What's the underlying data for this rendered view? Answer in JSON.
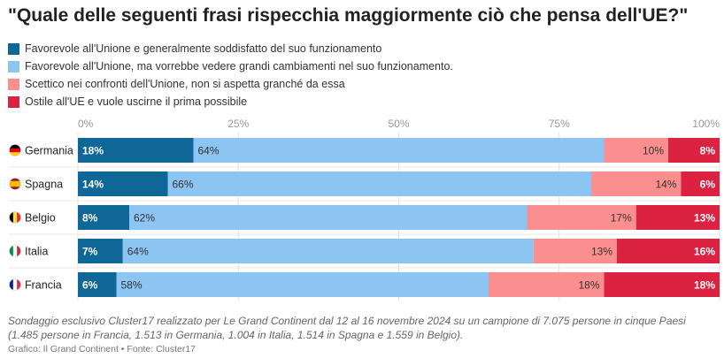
{
  "title": "\"Quale delle seguenti frasi rispecchia maggiormente ciò che pensa dell'UE?\"",
  "legend": [
    {
      "label": "Favorevole all'Unione e generalmente soddisfatto del suo funzionamento",
      "color": "#0e6797"
    },
    {
      "label": "Favorevole all'Unione, ma vorrebbe vedere grandi cambiamenti nel suo funzionamento.",
      "color": "#8cc4f2"
    },
    {
      "label": "Scettico nei confronti dell'Unione, non si aspetta granché da essa",
      "color": "#fb8e8e"
    },
    {
      "label": "Ostile all'UE e vuole uscirne il prima possibile",
      "color": "#dc2241"
    }
  ],
  "note": "Sondaggio esclusivo Cluster17 realizzato per Le Grand Continent dal 12 al 16 novembre 2024 su un campione di 7.075 persone in cinque Paesi (1.485 persone in Francia, 1.513 in Germania, 1.004 in Italia, 1.514 in Spagna e 1.559 in Belgio).",
  "source": "Grafico: Il Grand Continent • Fonte: Cluster17",
  "chart_data": {
    "type": "bar",
    "orientation": "horizontal",
    "stacked": true,
    "xlim": [
      0,
      100
    ],
    "xticks": [
      "0%",
      "25%",
      "50%",
      "75%",
      "100%"
    ],
    "categories": [
      "Germania",
      "Spagna",
      "Belgio",
      "Italia",
      "Francia"
    ],
    "series": [
      {
        "name": "Favorevole all'Unione e generalmente soddisfatto del suo funzionamento",
        "color": "#0e6797",
        "values": [
          18,
          14,
          8,
          7,
          6
        ],
        "labels": [
          "18%",
          "14%",
          "8%",
          "7%",
          "6%"
        ],
        "label_color": "#ffffff",
        "label_bold": true
      },
      {
        "name": "Favorevole all'Unione, ma vorrebbe vedere grandi cambiamenti nel suo funzionamento.",
        "color": "#8cc4f2",
        "values": [
          64,
          66,
          62,
          64,
          58
        ],
        "labels": [
          "64%",
          "66%",
          "62%",
          "64%",
          "58%"
        ],
        "label_color": "#333333",
        "label_bold": false
      },
      {
        "name": "Scettico nei confronti dell'Unione, non si aspetta granché da essa",
        "color": "#fb8e8e",
        "values": [
          10,
          14,
          17,
          13,
          18
        ],
        "labels": [
          "10%",
          "14%",
          "17%",
          "13%",
          "18%"
        ],
        "label_color": "#333333",
        "label_bold": false
      },
      {
        "name": "Ostile all'UE e vuole uscirne il prima possibile",
        "color": "#dc2241",
        "values": [
          8,
          6,
          13,
          16,
          18
        ],
        "labels": [
          "8%",
          "6%",
          "13%",
          "16%",
          "18%"
        ],
        "label_color": "#ffffff",
        "label_bold": true
      }
    ],
    "flags": [
      {
        "icon": "flag-germany-icon",
        "colors": [
          "#000000",
          "#dd0000",
          "#ffce00"
        ],
        "layout": "horizontal"
      },
      {
        "icon": "flag-spain-icon",
        "colors": [
          "#aa151b",
          "#f1bf00",
          "#aa151b"
        ],
        "layout": "horizontal"
      },
      {
        "icon": "flag-belgium-icon",
        "colors": [
          "#000000",
          "#fae042",
          "#ed2939"
        ],
        "layout": "vertical"
      },
      {
        "icon": "flag-italy-icon",
        "colors": [
          "#009246",
          "#ffffff",
          "#ce2b37"
        ],
        "layout": "vertical"
      },
      {
        "icon": "flag-france-icon",
        "colors": [
          "#002395",
          "#ffffff",
          "#ed2939"
        ],
        "layout": "vertical"
      }
    ],
    "grid": true
  }
}
